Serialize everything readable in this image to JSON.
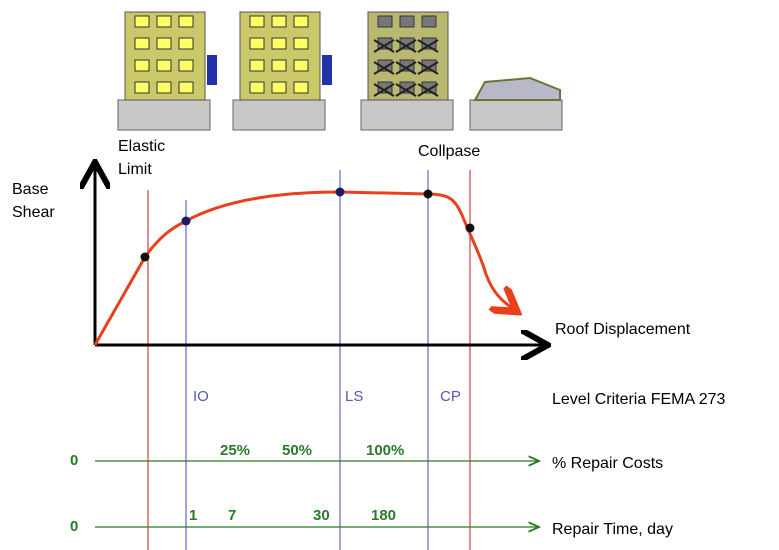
{
  "labels": {
    "elastic_limit": [
      "Elastic",
      "Limit"
    ],
    "collapse": "Collpase",
    "y_axis": [
      "Base",
      "Shear"
    ],
    "x_axis": "Roof Displacement"
  },
  "levels": {
    "names": [
      "IO",
      "LS",
      "CP"
    ],
    "title": "Level Criteria FEMA 273"
  },
  "repair_costs": {
    "start": "0",
    "marks": [
      "25%",
      "50%",
      "100%"
    ],
    "title": "% Repair Costs"
  },
  "repair_time": {
    "start": "0",
    "marks": [
      "1",
      "7",
      "30",
      "180"
    ],
    "title": "Repair Time, day"
  }
}
